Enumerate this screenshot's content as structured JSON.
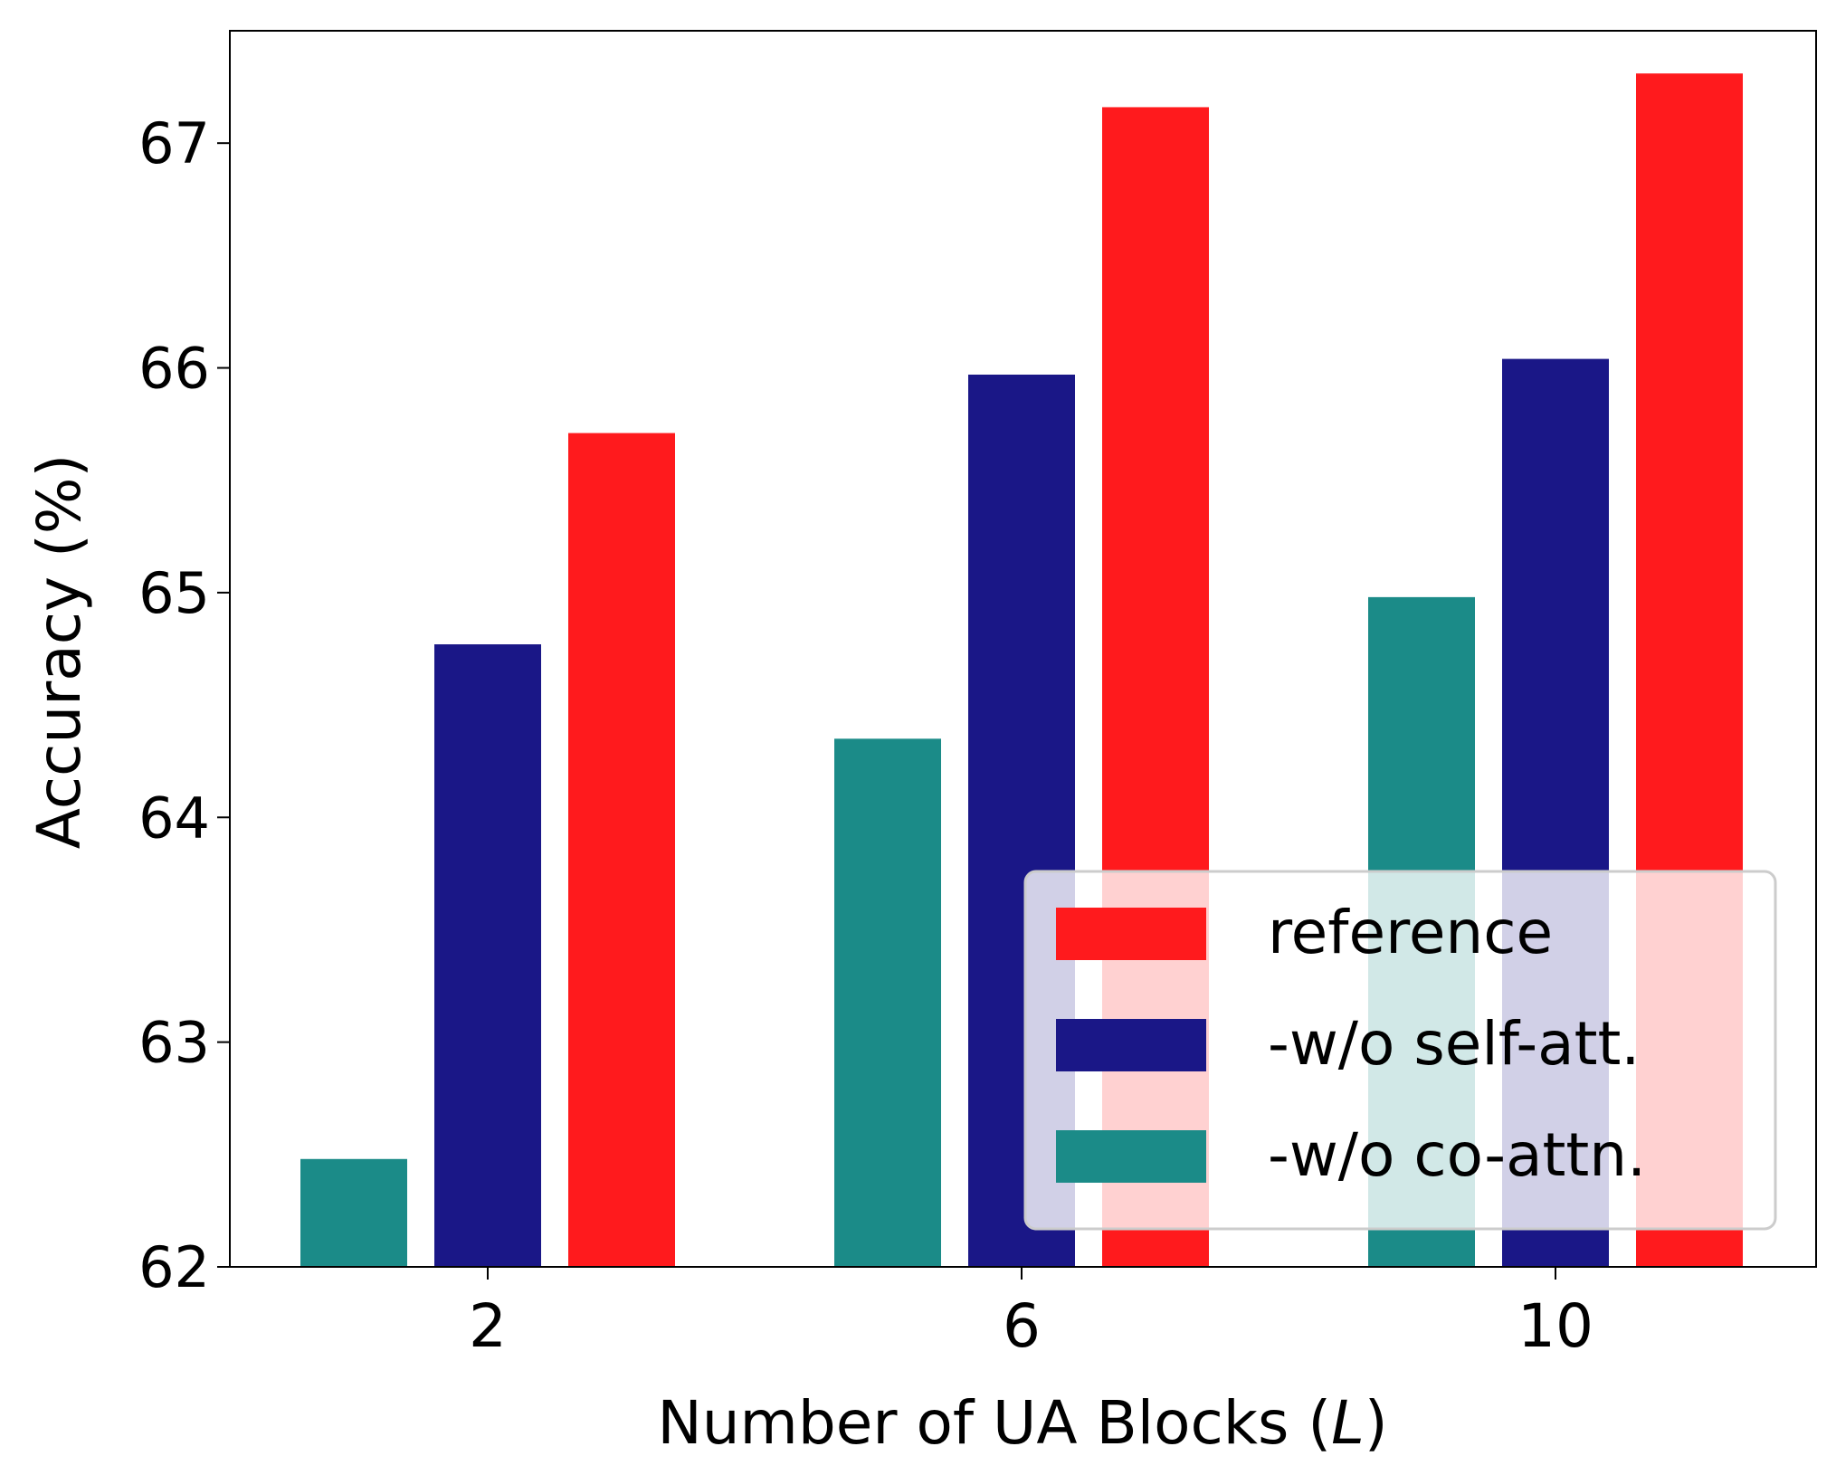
{
  "chart_data": {
    "type": "bar",
    "title": "",
    "xlabel_prefix": "Number of UA Blocks (",
    "xlabel_var": "L",
    "xlabel_suffix": ")",
    "ylabel": "Accuracy (%)",
    "categories": [
      "2",
      "6",
      "10"
    ],
    "ylim": [
      62,
      67.5
    ],
    "yticks": [
      62,
      63,
      64,
      65,
      66,
      67
    ],
    "ytick_labels": [
      "62",
      "63",
      "64",
      "65",
      "66",
      "67"
    ],
    "grid": false,
    "legend_position": "lower-right",
    "series": [
      {
        "name": "-w/o co-attn.",
        "color": "#1b8b88",
        "values": [
          62.48,
          64.35,
          64.98
        ]
      },
      {
        "name": "-w/o self-att.",
        "color": "#1a1787",
        "values": [
          64.77,
          65.97,
          66.04
        ]
      },
      {
        "name": "reference",
        "color": "#ff1a1d",
        "values": [
          65.71,
          67.16,
          67.31
        ]
      }
    ],
    "legend_order": [
      2,
      1,
      0
    ]
  }
}
